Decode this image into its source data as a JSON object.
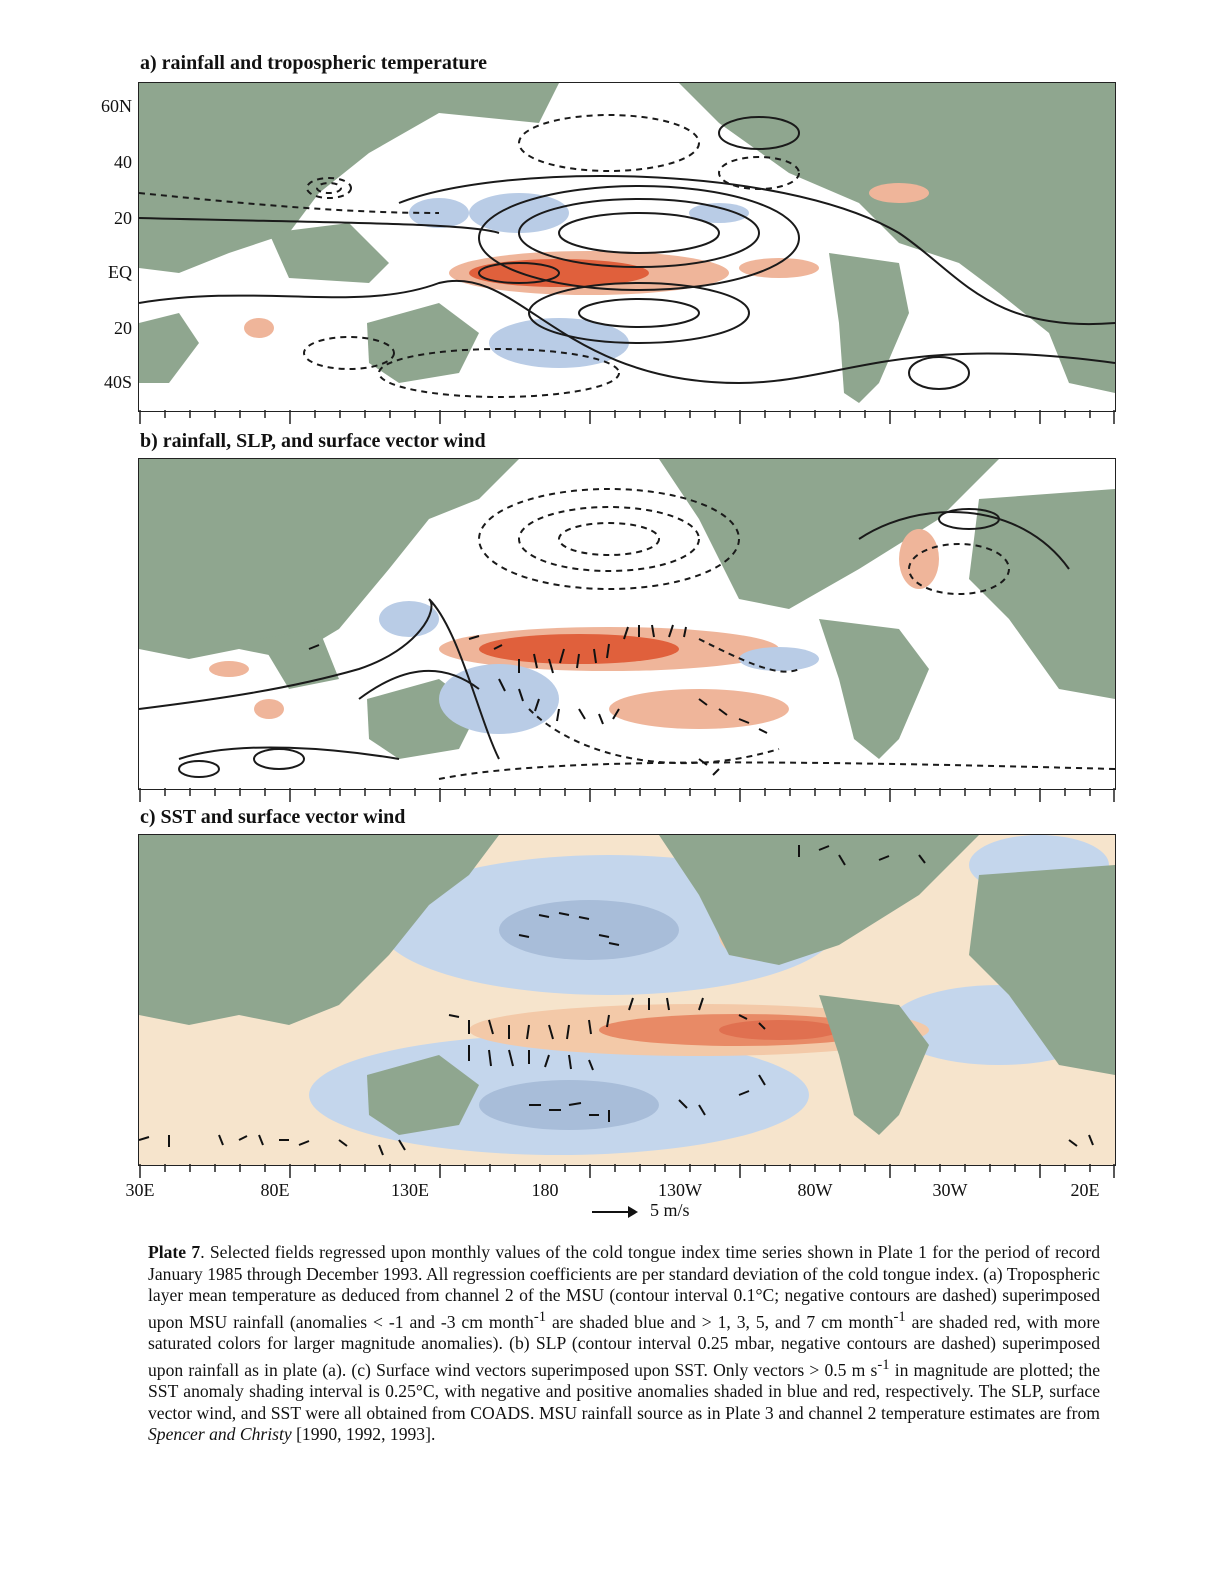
{
  "panels": [
    {
      "id": "a",
      "title": "a) rainfall and tropospheric temperature"
    },
    {
      "id": "b",
      "title": "b) rainfall, SLP, and surface vector wind"
    },
    {
      "id": "c",
      "title": "c) SST and surface vector wind"
    }
  ],
  "y_axis_labels": [
    "60N",
    "40",
    "20",
    "EQ",
    "20",
    "40S"
  ],
  "x_axis_labels": [
    "30E",
    "80E",
    "130E",
    "180",
    "130W",
    "80W",
    "30W",
    "20E"
  ],
  "scale_label": "5 m/s",
  "caption": {
    "label": "Plate 7",
    "text_1": ". Selected fields regressed upon monthly values of the cold tongue index time series shown in Plate 1 for the period of record January 1985 through December 1993. All regression coefficients are per standard deviation of the cold tongue index. (a) Tropospheric layer mean temperature as deduced from channel 2 of the MSU (contour interval 0.1°C; negative contours are dashed) superimposed upon MSU rainfall (anomalies < -1 and -3 cm month",
    "sup_1": "-1",
    "text_2": " are shaded blue and > 1, 3, 5, and 7 cm month",
    "sup_2": "-1",
    "text_3": " are shaded red, with more saturated colors for larger magnitude anomalies). (b) SLP (contour interval 0.25 mbar, negative contours are dashed) superimposed upon rainfall as in plate (a). (c) Surface wind vectors superimposed upon SST. Only vectors > 0.5 m s",
    "sup_3": "-1",
    "text_4": " in magnitude are plotted; the SST anomaly shading interval is 0.25°C, with negative and positive anomalies shaded in blue and red, respectively. The SLP, surface vector wind, and SST were all obtained from COADS. MSU rainfall source as in Plate 3 and channel 2 temperature estimates are from ",
    "authors": "Spencer and Christy",
    "text_5": " [1990, 1992, 1993]."
  },
  "colors": {
    "land": "#8fa68f",
    "rain_pos": "#e0603c",
    "rain_pos_light": "#efb59a",
    "rain_neg": "#b9cce6",
    "sst_pos": "#f3c9a8",
    "sst_warm": "#e88a66",
    "sst_neg": "#c4d6ec",
    "sst_neg_deep": "#a8bdd9",
    "contour": "#1a1a1a"
  }
}
